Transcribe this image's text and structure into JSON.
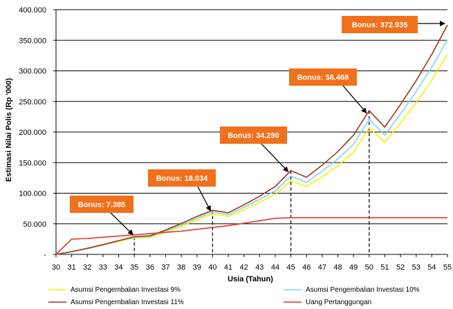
{
  "chart_data": {
    "type": "line",
    "title": "",
    "xlabel": "Usia (Tahun)",
    "ylabel": "Estimasi Nilai Polis (Rp '000)",
    "x": [
      30,
      31,
      32,
      33,
      34,
      35,
      36,
      37,
      38,
      39,
      40,
      41,
      42,
      43,
      44,
      45,
      46,
      47,
      48,
      49,
      50,
      51,
      52,
      53,
      54,
      55
    ],
    "xlim": [
      30,
      55
    ],
    "ylim": [
      0,
      400000
    ],
    "yticks": [
      "-",
      "50.000",
      "100.000",
      "150.000",
      "200.000",
      "250.000",
      "300.000",
      "350.000",
      "400.000"
    ],
    "grid": "horizontal",
    "legend_position": "bottom",
    "series": [
      {
        "name": "Asumsi Pengembalian Investasi 9%",
        "color": "#f2f200",
        "values": [
          0,
          4000,
          9000,
          15000,
          21000,
          27000,
          27500,
          36000,
          46000,
          56000,
          66000,
          62000,
          73000,
          85000,
          98000,
          120000,
          111000,
          127000,
          145000,
          167000,
          207000,
          183000,
          215000,
          248000,
          285000,
          327000
        ]
      },
      {
        "name": "Asumsi Pengembalian Investasi 10%",
        "color": "#7fd4f0",
        "values": [
          0,
          4000,
          9500,
          15500,
          22000,
          28000,
          29000,
          38000,
          48000,
          59000,
          69000,
          65000,
          77000,
          90000,
          104000,
          128000,
          118000,
          136000,
          156000,
          180000,
          221000,
          195000,
          230000,
          266000,
          306000,
          351000
        ]
      },
      {
        "name": "Asumsi Pengembalian Investasi 11%",
        "color": "#a0331c",
        "values": [
          0,
          4500,
          10000,
          16000,
          22500,
          29000,
          30500,
          40000,
          50500,
          62000,
          72000,
          68000,
          81000,
          95000,
          111000,
          137000,
          126000,
          146000,
          168000,
          195000,
          235000,
          208000,
          245000,
          284000,
          327000,
          375000
        ]
      },
      {
        "name": "Uang Pertanggungan",
        "color": "#e2352b",
        "values": [
          0,
          25000,
          26000,
          28000,
          30000,
          32000,
          34000,
          36000,
          38000,
          41000,
          44000,
          47000,
          51000,
          55000,
          59000,
          60000,
          60000,
          60000,
          60000,
          60000,
          60000,
          60000,
          60000,
          60000,
          60000,
          60000
        ]
      }
    ],
    "bonus_markers": [
      35,
      40,
      45,
      50
    ],
    "annotations": [
      {
        "text": "Bonus: 7.385",
        "target_x": 35
      },
      {
        "text": "Bonus: 18.034",
        "target_x": 40
      },
      {
        "text": "Bonus: 34.290",
        "target_x": 45
      },
      {
        "text": "Bonus: 58.468",
        "target_x": 50
      },
      {
        "text": "Bonus: 372.935",
        "target_x": 55
      }
    ],
    "annotation_color": "#f0701c"
  }
}
